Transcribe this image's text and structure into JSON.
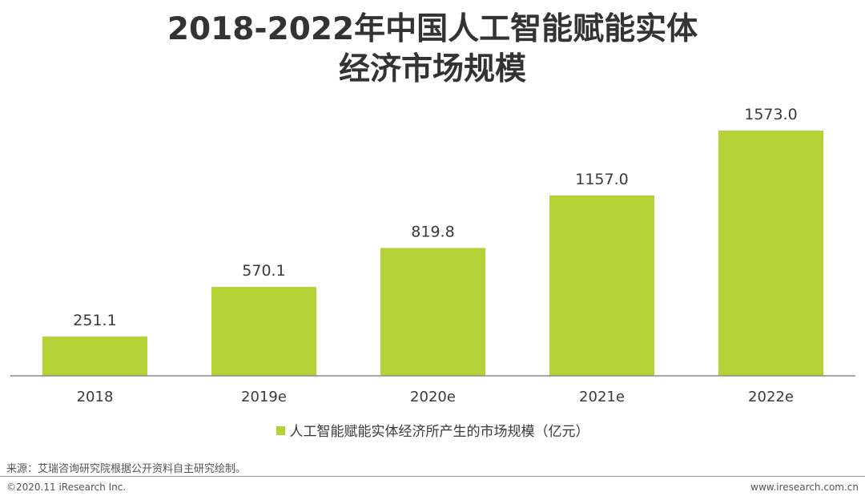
{
  "title_line1": "2018-2022年中国人工智能赋能实体",
  "title_line2": "经济市场规模",
  "source_note": "来源：艾瑞咨询研究院根据公开资料自主研究绘制。",
  "footer": {
    "copyright": "©2020.11 iResearch Inc.",
    "website": "www.iresearch.com.cn"
  },
  "chart_data": {
    "type": "bar",
    "categories": [
      "2018",
      "2019e",
      "2020e",
      "2021e",
      "2022e"
    ],
    "series": [
      {
        "name": "人工智能赋能实体经济所产生的市场规模（亿元）",
        "values": [
          251.1,
          570.1,
          819.8,
          1157.0,
          1573.0
        ],
        "labels": [
          "251.1",
          "570.1",
          "819.8",
          "1157.0",
          "1573.0"
        ],
        "color": "#b2d235"
      }
    ],
    "ylim": [
      0,
      1573.0
    ],
    "grid": false,
    "legend_position": "bottom"
  }
}
